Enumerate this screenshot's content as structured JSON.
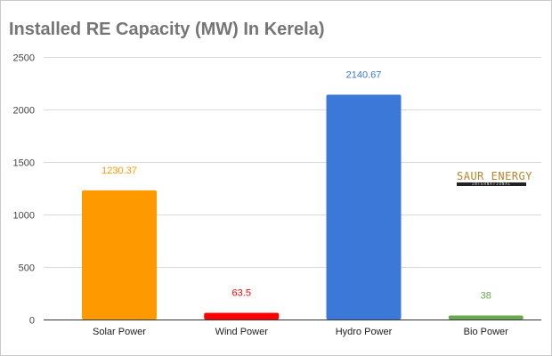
{
  "chart_data": {
    "type": "bar",
    "title": "Installed RE Capacity (MW) In Kerela)",
    "categories": [
      "Solar Power",
      "Wind Power",
      "Hydro Power",
      "Bio Power"
    ],
    "values": [
      1230.37,
      63.5,
      2140.67,
      38
    ],
    "value_labels": [
      "1230.37",
      "63.5",
      "2140.67",
      "38"
    ],
    "colors": [
      "#ff9900",
      "#ff0000",
      "#3c78d8",
      "#6aa84f"
    ],
    "ylim": [
      0,
      2500
    ],
    "yticks": [
      0,
      500,
      1000,
      1500,
      2000,
      2500
    ],
    "grid": true,
    "legend": false
  },
  "watermark": {
    "main": "SAUR ENERGY",
    "sub": "INTERNATIONAL"
  }
}
